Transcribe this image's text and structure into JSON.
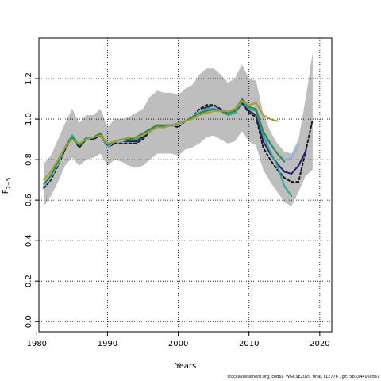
{
  "chart_data": {
    "type": "line",
    "title": "",
    "xlabel": "Years",
    "ylabel": "F",
    "ylabel_subscript": "2−5",
    "xlim": [
      1980.3,
      2021.7
    ],
    "ylim": [
      -0.05,
      1.4
    ],
    "xticks": [
      1980,
      1990,
      2000,
      2010,
      2020
    ],
    "yticks": [
      0.0,
      0.2,
      0.4,
      0.6,
      0.8,
      1.0,
      1.2
    ],
    "ytick_labels": [
      "0.0",
      "0.2",
      "0.4",
      "0.6",
      "0.8",
      "1.0",
      "1.2"
    ],
    "grid": true,
    "grid_style": "dotted",
    "band": {
      "color": "#bebebe",
      "x": [
        1981,
        1982,
        1983,
        1984,
        1985,
        1986,
        1987,
        1988,
        1989,
        1990,
        1991,
        1992,
        1993,
        1994,
        1995,
        1996,
        1997,
        1998,
        1999,
        2000,
        2001,
        2002,
        2003,
        2004,
        2005,
        2006,
        2007,
        2008,
        2009,
        2010,
        2011,
        2012,
        2013,
        2014,
        2015,
        2016,
        2017,
        2018,
        2019
      ],
      "upper": [
        0.78,
        0.82,
        0.9,
        0.98,
        1.05,
        0.98,
        1.02,
        1.02,
        1.05,
        0.96,
        1.0,
        1.0,
        1.01,
        1.03,
        1.05,
        1.11,
        1.14,
        1.13,
        1.13,
        1.12,
        1.15,
        1.17,
        1.22,
        1.25,
        1.25,
        1.22,
        1.18,
        1.2,
        1.27,
        1.2,
        1.19,
        1.03,
        0.94,
        0.88,
        0.84,
        0.83,
        0.9,
        1.1,
        1.33
      ],
      "lower": [
        0.57,
        0.62,
        0.69,
        0.77,
        0.81,
        0.77,
        0.8,
        0.81,
        0.83,
        0.77,
        0.8,
        0.79,
        0.77,
        0.76,
        0.77,
        0.8,
        0.83,
        0.83,
        0.83,
        0.82,
        0.85,
        0.86,
        0.88,
        0.91,
        0.92,
        0.9,
        0.88,
        0.89,
        0.94,
        0.89,
        0.87,
        0.75,
        0.69,
        0.64,
        0.59,
        0.57,
        0.64,
        0.72,
        0.75
      ]
    },
    "series": [
      {
        "color": "#1a1a1a",
        "dash": "3,3",
        "width": 2,
        "x": [
          1981,
          1982,
          1983,
          1984,
          1985,
          1986,
          1987,
          1988,
          1989,
          1990,
          1991,
          1992,
          1993,
          1994,
          1995,
          1996,
          1997,
          1998,
          1999,
          2000,
          2001,
          2002,
          2003,
          2004,
          2005,
          2006,
          2007,
          2008,
          2009,
          2010,
          2011,
          2012,
          2013,
          2014,
          2015,
          2016,
          2017,
          2018,
          2019
        ],
        "values": [
          0.66,
          0.7,
          0.77,
          0.85,
          0.91,
          0.86,
          0.9,
          0.9,
          0.92,
          0.86,
          0.88,
          0.88,
          0.88,
          0.88,
          0.9,
          0.94,
          0.96,
          0.96,
          0.97,
          0.96,
          0.99,
          1.01,
          1.05,
          1.07,
          1.07,
          1.05,
          1.02,
          1.03,
          1.08,
          1.03,
          1.01,
          0.86,
          0.8,
          0.75,
          0.71,
          0.69,
          0.69,
          0.84,
          1.0
        ]
      },
      {
        "color": "#2a1e6e",
        "dash": "",
        "width": 2,
        "x": [
          1981,
          1982,
          1983,
          1984,
          1985,
          1986,
          1987,
          1988,
          1989,
          1990,
          1991,
          1992,
          1993,
          1994,
          1995,
          1996,
          1997,
          1998,
          1999,
          2000,
          2001,
          2002,
          2003,
          2004,
          2005,
          2006,
          2007,
          2008,
          2009,
          2010,
          2011,
          2012,
          2013,
          2014,
          2015,
          2016,
          2017,
          2018
        ],
        "values": [
          0.67,
          0.71,
          0.78,
          0.86,
          0.92,
          0.87,
          0.91,
          0.9,
          0.93,
          0.86,
          0.89,
          0.89,
          0.89,
          0.89,
          0.91,
          0.94,
          0.97,
          0.96,
          0.97,
          0.97,
          0.99,
          1.01,
          1.04,
          1.06,
          1.06,
          1.05,
          1.02,
          1.03,
          1.08,
          1.04,
          1.02,
          0.89,
          0.83,
          0.78,
          0.74,
          0.73,
          0.77,
          0.84
        ]
      },
      {
        "color": "#87b4e8",
        "dash": "",
        "width": 2,
        "x": [
          1981,
          1982,
          1983,
          1984,
          1985,
          1986,
          1987,
          1988,
          1989,
          1990,
          1991,
          1992,
          1993,
          1994,
          1995,
          1996,
          1997,
          1998,
          1999,
          2000,
          2001,
          2002,
          2003,
          2004,
          2005,
          2006,
          2007,
          2008,
          2009,
          2010,
          2011,
          2012,
          2013,
          2014,
          2015,
          2016,
          2017
        ],
        "values": [
          0.67,
          0.71,
          0.78,
          0.86,
          0.92,
          0.87,
          0.91,
          0.91,
          0.93,
          0.86,
          0.89,
          0.89,
          0.9,
          0.9,
          0.92,
          0.95,
          0.97,
          0.97,
          0.97,
          0.97,
          0.99,
          1.01,
          1.04,
          1.05,
          1.06,
          1.04,
          1.02,
          1.03,
          1.09,
          1.05,
          1.04,
          0.93,
          0.87,
          0.83,
          0.8,
          0.81,
          0.87
        ]
      },
      {
        "color": "#2aa89a",
        "dash": "",
        "width": 2,
        "x": [
          1981,
          1982,
          1983,
          1984,
          1985,
          1986,
          1987,
          1988,
          1989,
          1990,
          1991,
          1992,
          1993,
          1994,
          1995,
          1996,
          1997,
          1998,
          1999,
          2000,
          2001,
          2002,
          2003,
          2004,
          2005,
          2006,
          2007,
          2008,
          2009,
          2010,
          2011,
          2012,
          2013,
          2014,
          2015,
          2016
        ],
        "values": [
          0.68,
          0.72,
          0.79,
          0.86,
          0.92,
          0.87,
          0.91,
          0.91,
          0.93,
          0.87,
          0.89,
          0.9,
          0.9,
          0.9,
          0.92,
          0.95,
          0.97,
          0.97,
          0.97,
          0.98,
          0.99,
          1.01,
          1.03,
          1.05,
          1.05,
          1.04,
          1.02,
          1.03,
          1.09,
          1.05,
          1.04,
          0.92,
          0.84,
          0.77,
          0.67,
          0.62
        ]
      },
      {
        "color": "#2f8a3a",
        "dash": "",
        "width": 2,
        "x": [
          1981,
          1982,
          1983,
          1984,
          1985,
          1986,
          1987,
          1988,
          1989,
          1990,
          1991,
          1992,
          1993,
          1994,
          1995,
          1996,
          1997,
          1998,
          1999,
          2000,
          2001,
          2002,
          2003,
          2004,
          2005,
          2006,
          2007,
          2008,
          2009,
          2010,
          2011,
          2012,
          2013,
          2014,
          2015
        ],
        "values": [
          0.68,
          0.72,
          0.79,
          0.86,
          0.91,
          0.87,
          0.9,
          0.91,
          0.93,
          0.87,
          0.89,
          0.9,
          0.9,
          0.91,
          0.93,
          0.95,
          0.97,
          0.97,
          0.97,
          0.98,
          0.99,
          1.01,
          1.03,
          1.04,
          1.05,
          1.04,
          1.03,
          1.04,
          1.1,
          1.06,
          1.05,
          0.94,
          0.88,
          0.83,
          0.79
        ]
      },
      {
        "color": "#a3a02a",
        "dash": "",
        "width": 2,
        "x": [
          1981,
          1982,
          1983,
          1984,
          1985,
          1986,
          1987,
          1988,
          1989,
          1990,
          1991,
          1992,
          1993,
          1994,
          1995,
          1996,
          1997,
          1998,
          1999,
          2000,
          2001,
          2002,
          2003,
          2004,
          2005,
          2006,
          2007,
          2008,
          2009,
          2010,
          2011,
          2012,
          2013,
          2014
        ],
        "values": [
          0.7,
          0.74,
          0.8,
          0.86,
          0.9,
          0.88,
          0.9,
          0.91,
          0.92,
          0.88,
          0.89,
          0.9,
          0.91,
          0.91,
          0.92,
          0.94,
          0.96,
          0.96,
          0.97,
          0.98,
          0.99,
          1.0,
          1.02,
          1.03,
          1.04,
          1.04,
          1.04,
          1.05,
          1.09,
          1.07,
          1.08,
          1.02,
          1.0,
          0.99
        ]
      }
    ],
    "footnote": "stockassessment.org, cod6a_WGCSE2020_final, r12776 , git: 5b334405cda7"
  }
}
